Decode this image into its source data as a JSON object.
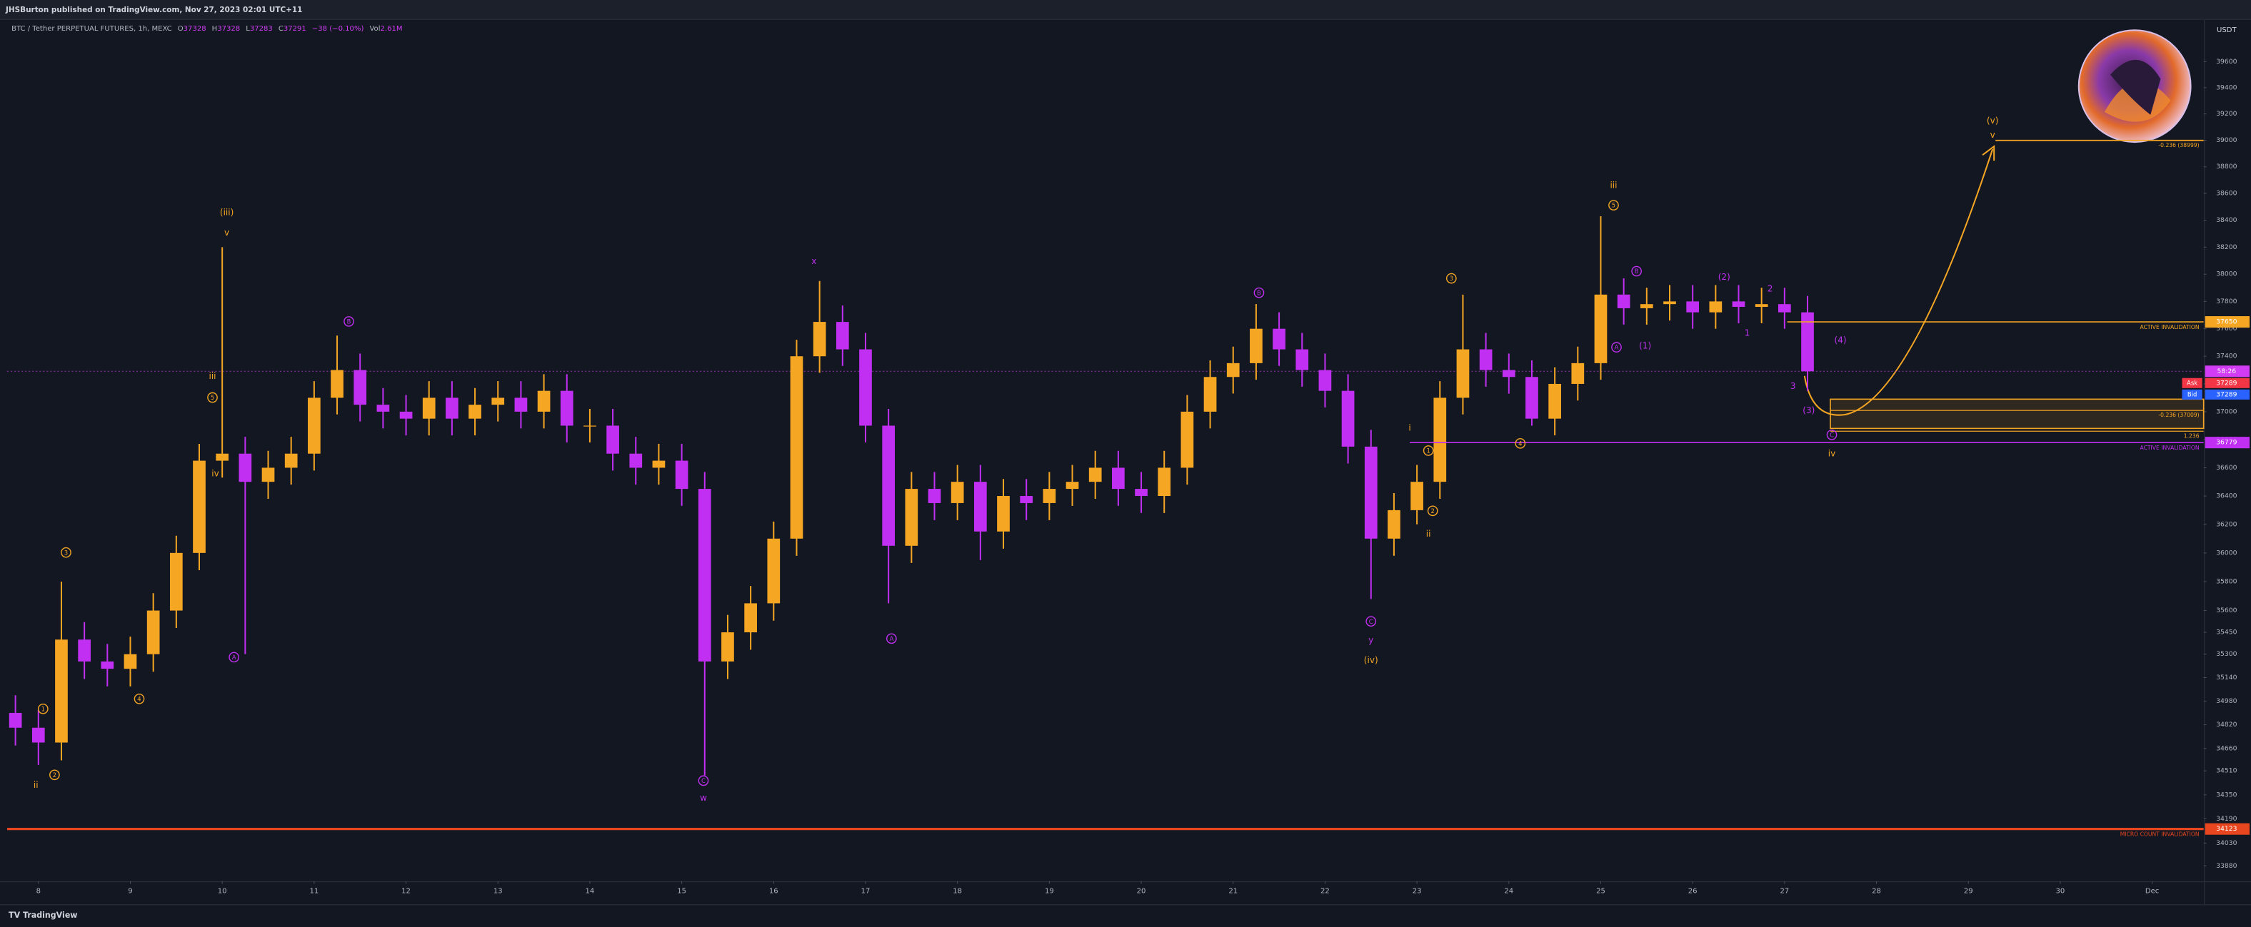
{
  "header": {
    "publisher": "JHSBurton published on TradingView.com, Nov 27, 2023 02:01 UTC+11",
    "brand": "TradingView"
  },
  "chart_data": {
    "type": "candlestick",
    "title": "BTC / Tether PERPETUAL FUTURES, 1h, MEXC",
    "legend": [
      {
        "label": "O",
        "value": 37328
      },
      {
        "label": "H",
        "value": 37328
      },
      {
        "label": "L",
        "value": 37283
      },
      {
        "label": "C",
        "value": 37291
      }
    ],
    "change": "−38 (−0.10%)",
    "volume": {
      "label": "Vol",
      "value": "2.61M"
    },
    "unit": "USDT",
    "log_scale": true,
    "grid": false,
    "up_color": "#f5a623",
    "down_color": "#c02ff2",
    "x": [
      7.75,
      8,
      8.25,
      8.5,
      8.75,
      9,
      9.25,
      9.5,
      9.75,
      10,
      10.25,
      10.5,
      10.75,
      11,
      11.25,
      11.5,
      11.75,
      12,
      12.25,
      12.5,
      12.75,
      13,
      13.25,
      13.5,
      13.75,
      14,
      14.25,
      14.5,
      14.75,
      15,
      15.25,
      15.5,
      15.75,
      16,
      16.25,
      16.5,
      16.75,
      17,
      17.25,
      17.5,
      17.75,
      18,
      18.25,
      18.5,
      18.75,
      19,
      19.25,
      19.5,
      19.75,
      20,
      20.25,
      20.5,
      20.75,
      21,
      21.25,
      21.5,
      21.75,
      22,
      22.25,
      22.5,
      22.75,
      23,
      23.25,
      23.5,
      23.75,
      24,
      24.25,
      24.5,
      24.75,
      25,
      25.25,
      25.5,
      25.75,
      26,
      26.25,
      26.5,
      26.75,
      27,
      27.25
    ],
    "open": [
      34900,
      34800,
      34700,
      35400,
      35250,
      35200,
      35300,
      35600,
      36000,
      36650,
      36700,
      36500,
      36600,
      36700,
      37100,
      37300,
      37050,
      37000,
      36950,
      37100,
      36950,
      37050,
      37100,
      37000,
      37150,
      36900,
      36900,
      36700,
      36600,
      36650,
      36450,
      35250,
      35450,
      35650,
      36100,
      37400,
      37650,
      37450,
      36900,
      36050,
      36450,
      36350,
      36500,
      36150,
      36400,
      36350,
      36450,
      36500,
      36600,
      36450,
      36400,
      36600,
      37000,
      37250,
      37350,
      37600,
      37450,
      37300,
      37150,
      36750,
      36100,
      36300,
      36500,
      37100,
      37450,
      37300,
      37250,
      36950,
      37200,
      37350,
      37850,
      37750,
      37780,
      37800,
      37720,
      37800,
      37760,
      37780,
      37720
    ],
    "high": [
      35020,
      34920,
      35800,
      35520,
      35370,
      35420,
      35720,
      36120,
      36770,
      38200,
      36820,
      36720,
      36820,
      37220,
      37550,
      37420,
      37170,
      37120,
      37220,
      37220,
      37170,
      37220,
      37220,
      37270,
      37270,
      37020,
      37020,
      36820,
      36770,
      36770,
      36570,
      35570,
      35770,
      36220,
      37520,
      37950,
      37770,
      37570,
      37020,
      36570,
      36570,
      36620,
      36620,
      36520,
      36520,
      36570,
      36620,
      36720,
      36720,
      36570,
      36720,
      37120,
      37370,
      37470,
      37780,
      37720,
      37570,
      37420,
      37270,
      36870,
      36420,
      36620,
      37220,
      37850,
      37570,
      37420,
      37370,
      37320,
      37470,
      38430,
      37970,
      37900,
      37920,
      37920,
      37920,
      37920,
      37900,
      37900,
      37840
    ],
    "low": [
      34680,
      34550,
      34580,
      35130,
      35080,
      35080,
      35180,
      35480,
      35880,
      36530,
      35300,
      36380,
      36480,
      36580,
      36980,
      36930,
      36880,
      36830,
      36830,
      36830,
      36830,
      36930,
      36880,
      36880,
      36780,
      36780,
      36580,
      36480,
      36480,
      36330,
      34480,
      35130,
      35330,
      35530,
      35980,
      37280,
      37330,
      36780,
      35650,
      35930,
      36230,
      36230,
      35950,
      36030,
      36230,
      36230,
      36330,
      36380,
      36330,
      36280,
      36280,
      36480,
      36880,
      37130,
      37230,
      37330,
      37180,
      37030,
      36630,
      35680,
      35980,
      36200,
      36380,
      36980,
      37180,
      37130,
      36900,
      36830,
      37080,
      37230,
      37630,
      37630,
      37660,
      37600,
      37600,
      37640,
      37640,
      37600,
      37150
    ],
    "close": [
      34800,
      34700,
      35400,
      35250,
      35200,
      35300,
      35600,
      36000,
      36650,
      36700,
      36500,
      36600,
      36700,
      37100,
      37300,
      37050,
      37000,
      36950,
      37100,
      36950,
      37050,
      37100,
      37000,
      37150,
      36900,
      36900,
      36700,
      36600,
      36650,
      36450,
      35250,
      35450,
      35650,
      36100,
      37400,
      37650,
      37450,
      36900,
      36050,
      36450,
      36350,
      36500,
      36150,
      36400,
      36350,
      36450,
      36500,
      36600,
      36450,
      36400,
      36600,
      37000,
      37250,
      37350,
      37600,
      37450,
      37300,
      37150,
      36750,
      36100,
      36300,
      36500,
      37100,
      37450,
      37300,
      37250,
      36950,
      37200,
      37350,
      37850,
      37750,
      37780,
      37800,
      37720,
      37800,
      37760,
      37780,
      37720,
      37291
    ],
    "xlim": [
      7.66,
      31.56
    ],
    "xticks": [
      8,
      9,
      10,
      11,
      12,
      13,
      14,
      15,
      16,
      17,
      18,
      19,
      20,
      21,
      22,
      23,
      24,
      25,
      26,
      27,
      28,
      29,
      30,
      {
        "value": 31,
        "label": "Dec"
      }
    ],
    "ylim": [
      33780,
      39920
    ],
    "yticks": [
      39600,
      39400,
      39200,
      39000,
      38800,
      38600,
      38400,
      38200,
      38000,
      37800,
      37600,
      37400,
      37200,
      37000,
      36800,
      36600,
      36400,
      36200,
      36000,
      35800,
      35600,
      35450,
      35300,
      35140,
      34980,
      34820,
      34660,
      34510,
      34350,
      34190,
      34030,
      33880
    ],
    "levels": [
      {
        "value": 38999,
        "label": "-0.236 (38999)",
        "color": "#f5a623"
      },
      {
        "value": 37650,
        "label": "37650",
        "note": "ACTIVE INVALIDATION",
        "color": "#f5a623"
      },
      {
        "value": 37009,
        "label": "-0.236 (37009)",
        "color": "#f5a623"
      },
      {
        "value": 36860,
        "label": "1.236",
        "color": "#f5a623"
      },
      {
        "value": 36779,
        "label": "36779",
        "note": "ACTIVE INVALIDATION",
        "color": "#c02ff2"
      },
      {
        "value": 34123,
        "label": "34123",
        "note": "MICRO COUNT INVALIDATION",
        "color": "#e8461e"
      }
    ],
    "zones": [
      {
        "from": 36880,
        "to": 37090,
        "color": "#f5a623"
      }
    ],
    "countdown": "58:26",
    "price_tags": [
      {
        "label": "Ask",
        "value": 37289,
        "color": "#f23645"
      },
      {
        "label": "Bid",
        "value": 37289,
        "color": "#2962ff"
      }
    ],
    "annotations": [
      {
        "text": "(iii)",
        "color": "#f5a623"
      },
      {
        "text": "v",
        "color": "#f5a623"
      },
      {
        "text": "iii",
        "color": "#f5a623"
      },
      {
        "text": "5",
        "color": "#f5a623"
      },
      {
        "text": "iv",
        "color": "#f5a623"
      },
      {
        "text": "3",
        "color": "#f5a623"
      },
      {
        "text": "1",
        "color": "#f5a623"
      },
      {
        "text": "2",
        "color": "#f5a623"
      },
      {
        "text": "ii",
        "color": "#f5a623"
      },
      {
        "text": "4",
        "color": "#f5a623"
      },
      {
        "text": "B",
        "color": "#c02ff2"
      },
      {
        "text": "A",
        "color": "#c02ff2"
      },
      {
        "text": "C",
        "color": "#c02ff2"
      },
      {
        "text": "w",
        "color": "#c02ff2"
      },
      {
        "text": "x",
        "color": "#c02ff2"
      },
      {
        "text": "A",
        "color": "#c02ff2"
      },
      {
        "text": "B",
        "color": "#c02ff2"
      },
      {
        "text": "C",
        "color": "#c02ff2"
      },
      {
        "text": "y",
        "color": "#c02ff2"
      },
      {
        "text": "(iv)",
        "color": "#f5a623"
      },
      {
        "text": "i",
        "color": "#f5a623"
      },
      {
        "text": "1",
        "color": "#f5a623"
      },
      {
        "text": "2",
        "color": "#f5a623"
      },
      {
        "text": "ii",
        "color": "#f5a623"
      },
      {
        "text": "3",
        "color": "#f5a623"
      },
      {
        "text": "4",
        "color": "#f5a623"
      },
      {
        "text": "iii",
        "color": "#f5a623"
      },
      {
        "text": "5",
        "color": "#f5a623"
      },
      {
        "text": "A",
        "color": "#c02ff2"
      },
      {
        "text": "B",
        "color": "#c02ff2"
      },
      {
        "text": "(1)",
        "color": "#c02ff2"
      },
      {
        "text": "(2)",
        "color": "#c02ff2"
      },
      {
        "text": "1",
        "color": "#c02ff2"
      },
      {
        "text": "2",
        "color": "#c02ff2"
      },
      {
        "text": "3",
        "color": "#c02ff2"
      },
      {
        "text": "4",
        "color": "#c02ff2"
      },
      {
        "text": "(3)",
        "color": "#c02ff2"
      },
      {
        "text": "(4)",
        "color": "#c02ff2"
      },
      {
        "text": "C",
        "color": "#c02ff2"
      },
      {
        "text": "iv",
        "color": "#f5a623"
      },
      {
        "text": "(v)",
        "color": "#f5a623"
      },
      {
        "text": "v",
        "color": "#f5a623"
      }
    ]
  }
}
